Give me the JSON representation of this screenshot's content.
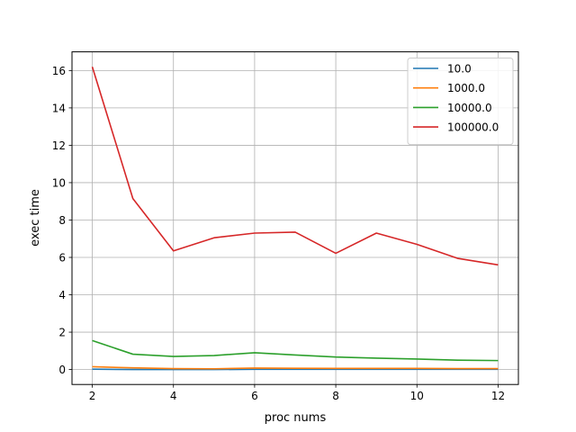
{
  "chart_data": {
    "type": "line",
    "title": "",
    "xlabel": "proc nums",
    "ylabel": "exec time",
    "xlim": [
      1.5,
      12.5
    ],
    "ylim": [
      -0.8,
      17.0
    ],
    "x_ticks": [
      2,
      4,
      6,
      8,
      10,
      12
    ],
    "y_ticks": [
      0,
      2,
      4,
      6,
      8,
      10,
      12,
      14,
      16
    ],
    "grid": true,
    "legend_position": "top-right",
    "x": [
      2,
      3,
      4,
      5,
      6,
      7,
      8,
      9,
      10,
      11,
      12
    ],
    "series": [
      {
        "name": "10.0",
        "color": "#1f77b4",
        "values": [
          0.02,
          0.0,
          0.0,
          0.0,
          0.01,
          0.01,
          0.01,
          0.01,
          0.01,
          0.01,
          0.01
        ]
      },
      {
        "name": "1000.0",
        "color": "#ff7f0e",
        "values": [
          0.15,
          0.09,
          0.05,
          0.04,
          0.08,
          0.07,
          0.06,
          0.06,
          0.06,
          0.05,
          0.05
        ]
      },
      {
        "name": "10000.0",
        "color": "#2ca02c",
        "values": [
          1.55,
          0.82,
          0.7,
          0.75,
          0.9,
          0.78,
          0.67,
          0.61,
          0.56,
          0.5,
          0.48
        ]
      },
      {
        "name": "100000.0",
        "color": "#d62728",
        "values": [
          16.2,
          9.15,
          6.35,
          7.05,
          7.3,
          7.35,
          6.22,
          7.3,
          6.7,
          5.95,
          5.6
        ]
      }
    ]
  }
}
